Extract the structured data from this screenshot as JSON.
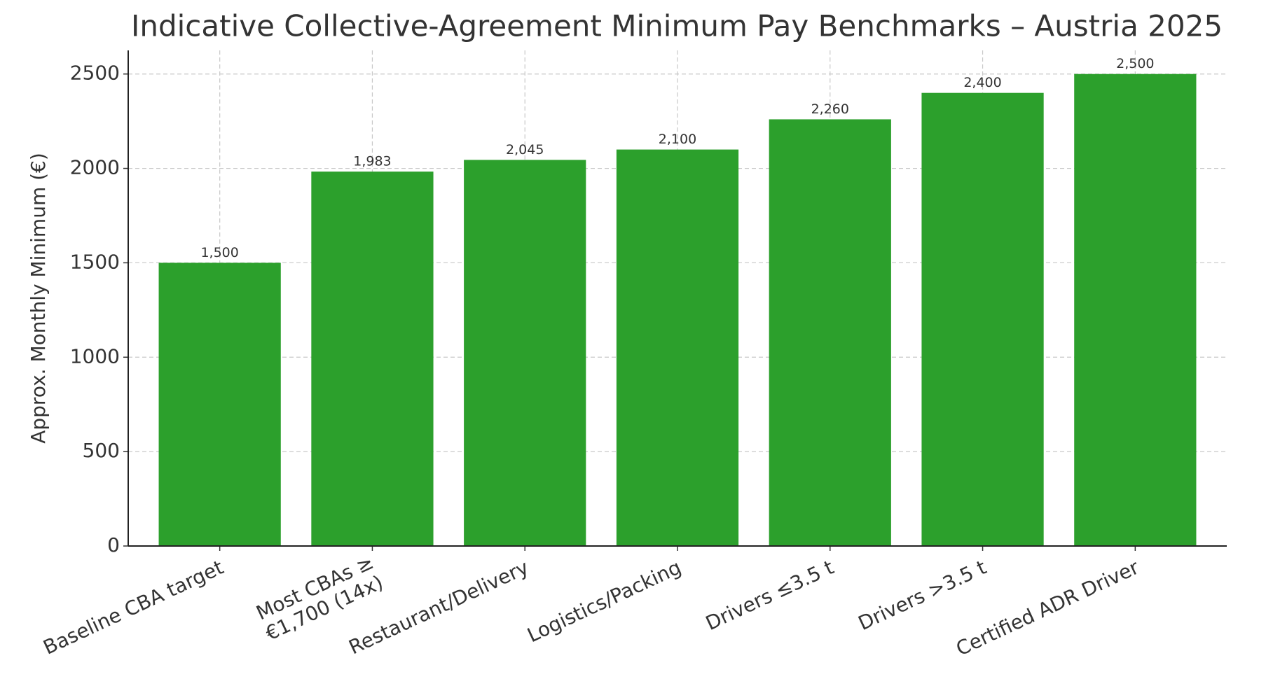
{
  "chart_data": {
    "type": "bar",
    "title": "Indicative Collective-Agreement Minimum Pay Benchmarks – Austria 2025",
    "y_label": "Approx. Monthly Minimum (€)",
    "categories": [
      "Baseline CBA target",
      "Most CBAs ≥\n€1,700 (14x)",
      "Restaurant/Delivery",
      "Logistics/Packing",
      "Drivers ≤3.5 t",
      "Drivers >3.5 t",
      "Certified ADR Driver"
    ],
    "values": [
      1500,
      1983,
      2045,
      2100,
      2260,
      2400,
      2500
    ],
    "value_labels": [
      "1,500",
      "1,983",
      "2,045",
      "2,100",
      "2,260",
      "2,400",
      "2,500"
    ],
    "color": "#2ca02c",
    "ylim": [
      0,
      2625
    ],
    "yticks": [
      0,
      500,
      1000,
      1500,
      2000,
      2500
    ],
    "grid": true
  }
}
